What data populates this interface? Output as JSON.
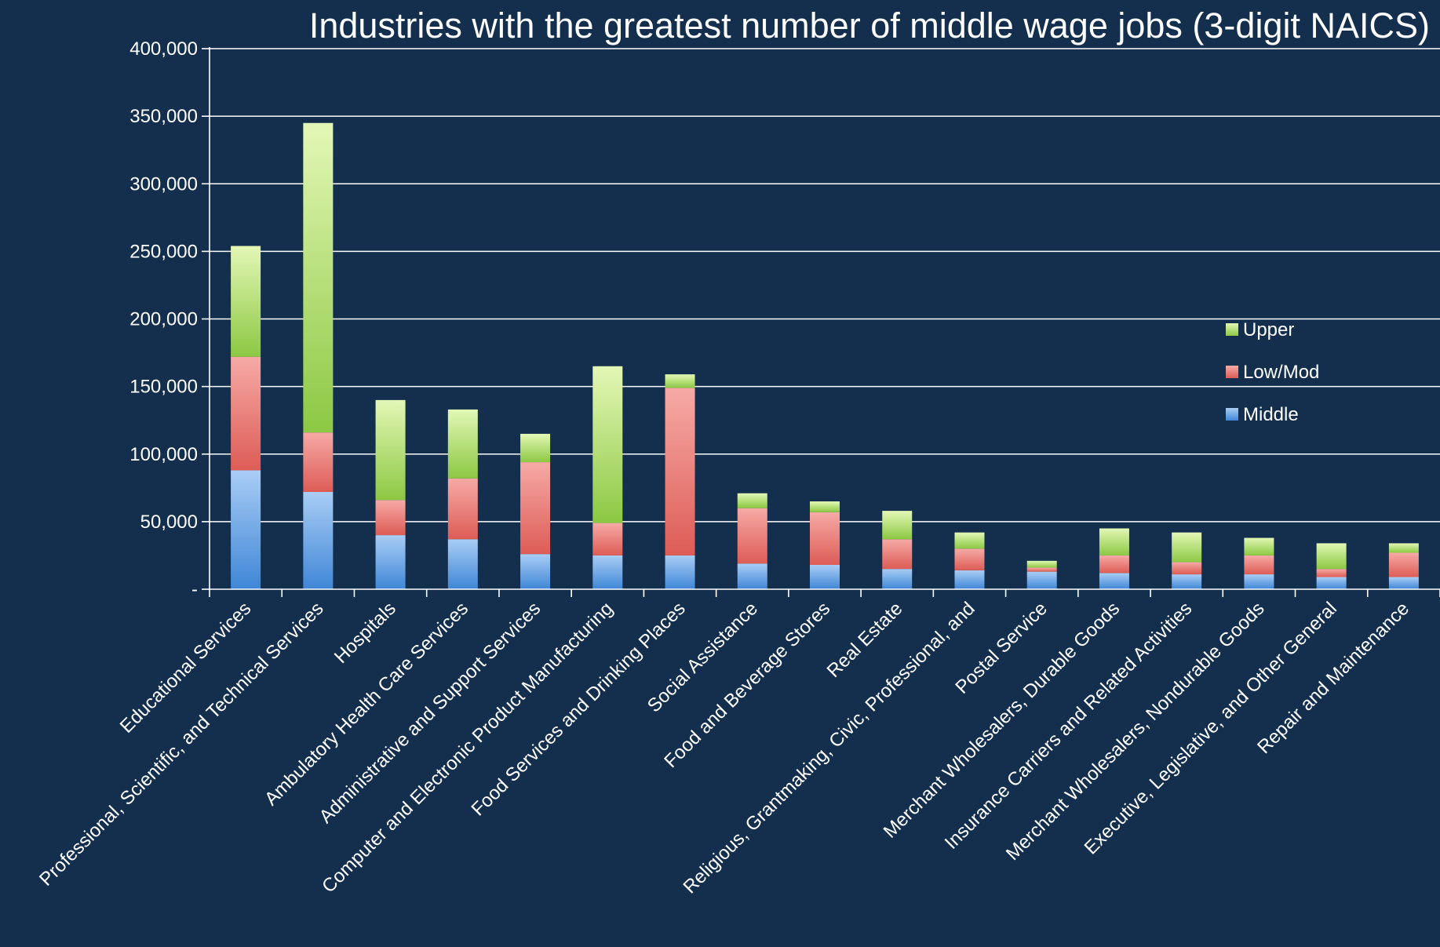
{
  "chart_data": {
    "type": "bar",
    "stacked": true,
    "title": "Industries with the greatest number of middle wage jobs (3-digit NAICS)",
    "xlabel": "",
    "ylabel": "",
    "ylim": [
      0,
      400000
    ],
    "yticks": [
      0,
      50000,
      100000,
      150000,
      200000,
      250000,
      300000,
      350000,
      400000
    ],
    "ytick_labels": [
      "-",
      "50,000",
      "100,000",
      "150,000",
      "200,000",
      "250,000",
      "300,000",
      "350,000",
      "400,000"
    ],
    "grid": true,
    "legend_position": "right",
    "categories": [
      "Educational Services",
      "Professional, Scientific, and Technical Services",
      "Hospitals",
      "Ambulatory Health Care Services",
      "Administrative and Support Services",
      "Computer and Electronic Product Manufacturing",
      "Food Services and Drinking Places",
      "Social Assistance",
      "Food and Beverage Stores",
      "Real Estate",
      "Religious, Grantmaking, Civic, Professional, and",
      "Postal Service",
      "Merchant Wholesalers, Durable Goods",
      "Insurance Carriers and Related Activities",
      "Merchant Wholesalers, Nondurable Goods",
      "Executive, Legislative, and Other General",
      "Repair and Maintenance"
    ],
    "series": [
      {
        "name": "Middle",
        "color": "#6fa8e8",
        "values": [
          88000,
          72000,
          40000,
          37000,
          26000,
          25000,
          25000,
          19000,
          18000,
          15000,
          14000,
          13000,
          12000,
          11000,
          11000,
          9000,
          9000
        ]
      },
      {
        "name": "Low/Mod",
        "color": "#e8706a",
        "values": [
          84000,
          44000,
          26000,
          45000,
          68000,
          24000,
          124000,
          41000,
          39000,
          22000,
          16000,
          3000,
          13000,
          9000,
          14000,
          6000,
          18000
        ]
      },
      {
        "name": "Upper",
        "color": "#a6d95e",
        "values": [
          82000,
          229000,
          74000,
          51000,
          21000,
          116000,
          10000,
          11000,
          8000,
          21000,
          12000,
          5000,
          20000,
          22000,
          13000,
          19000,
          7000
        ]
      }
    ],
    "legend_order": [
      "Upper",
      "Low/Mod",
      "Middle"
    ]
  }
}
